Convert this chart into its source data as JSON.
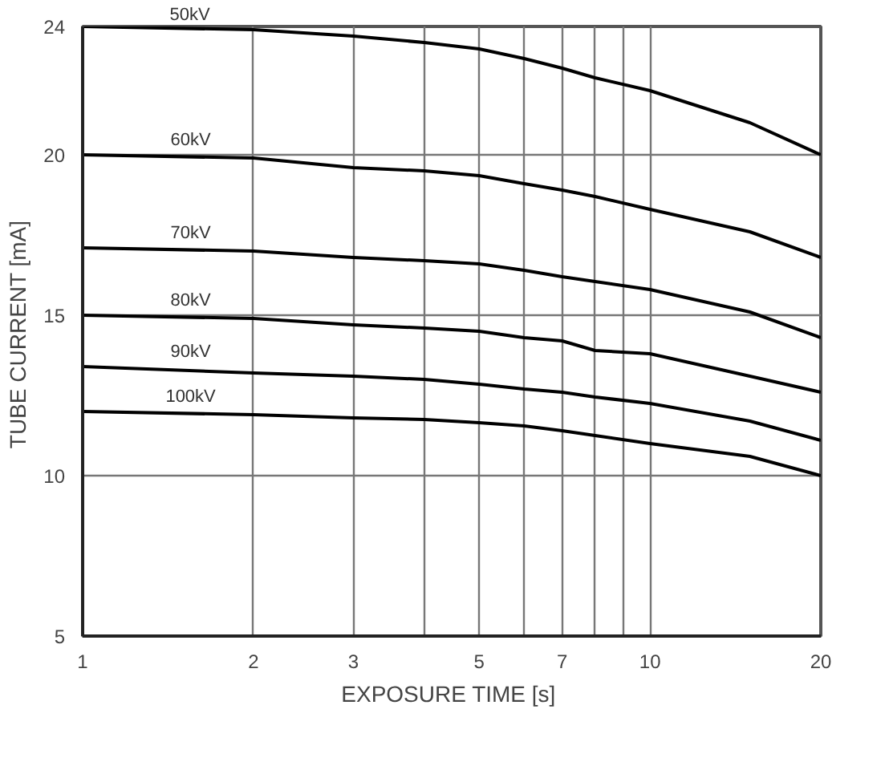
{
  "chart_data": {
    "type": "line",
    "xlabel": "EXPOSURE TIME  [s]",
    "ylabel": "TUBE CURRENT  [mA]",
    "log": "x",
    "x": [
      1,
      2,
      3,
      4,
      5,
      6,
      7,
      8,
      10,
      15,
      20
    ],
    "series": [
      {
        "name": "50kV",
        "color": "#000000",
        "values": [
          24,
          23.9,
          23.7,
          23.5,
          23.3,
          23,
          22.7,
          22.4,
          22,
          21,
          20
        ]
      },
      {
        "name": "60kV",
        "color": "#000000",
        "values": [
          20,
          19.9,
          19.6,
          19.5,
          19.35,
          19.1,
          18.9,
          18.7,
          18.3,
          17.6,
          16.8
        ]
      },
      {
        "name": "70kV",
        "color": "#000000",
        "values": [
          17.1,
          17,
          16.8,
          16.7,
          16.6,
          16.4,
          16.2,
          16.05,
          15.8,
          15.1,
          14.3
        ]
      },
      {
        "name": "80kV",
        "color": "#000000",
        "values": [
          15,
          14.9,
          14.7,
          14.6,
          14.5,
          14.3,
          14.2,
          13.9,
          13.8,
          13.1,
          12.6
        ]
      },
      {
        "name": "90kV",
        "color": "#000000",
        "values": [
          13.4,
          13.2,
          13.1,
          13,
          12.85,
          12.7,
          12.6,
          12.45,
          12.25,
          11.7,
          11.1
        ]
      },
      {
        "name": "100kV",
        "color": "#000000",
        "values": [
          12,
          11.9,
          11.8,
          11.75,
          11.65,
          11.55,
          11.4,
          11.25,
          11,
          10.6,
          10
        ]
      }
    ],
    "xlim": [
      1,
      20
    ],
    "ylim": [
      5,
      24
    ],
    "xticks": [
      1,
      2,
      3,
      {
        "value": 4,
        "label": null
      },
      5,
      {
        "value": 6,
        "label": null
      },
      7,
      {
        "value": 8,
        "label": null
      },
      {
        "value": 9,
        "label": null
      },
      10,
      20
    ],
    "yticks": [
      5,
      10,
      15,
      20,
      24
    ],
    "grid": true,
    "line_style": "solid"
  }
}
